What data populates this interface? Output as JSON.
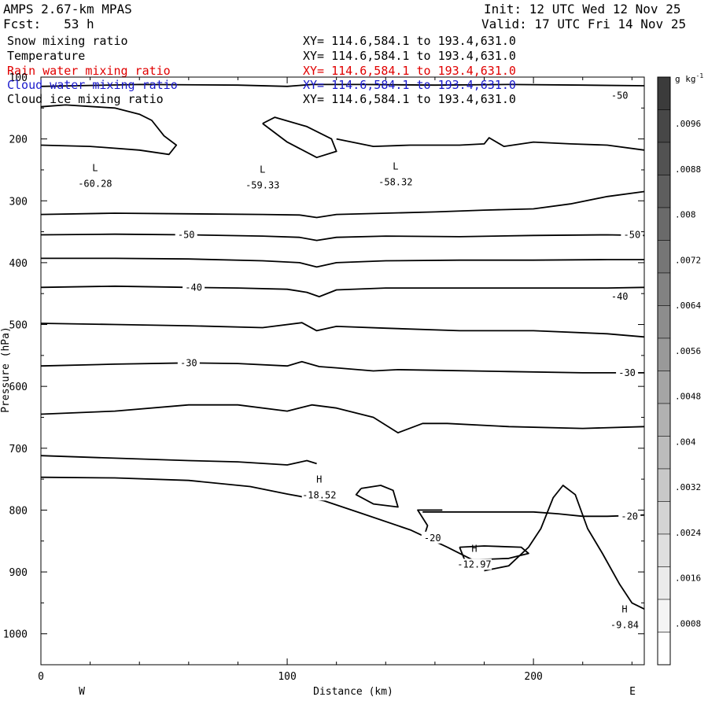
{
  "header": {
    "model": "AMPS 2.67-km MPAS",
    "init": "Init: 12 UTC Wed 12 Nov 25",
    "fcst": "Fcst:   53 h",
    "valid": "Valid: 17 UTC Fri 14 Nov 25"
  },
  "variables": [
    {
      "name": "Snow mixing ratio",
      "xy": "XY= 114.6,584.1 to 193.4,631.0",
      "color": "#000000"
    },
    {
      "name": "Temperature",
      "xy": "XY= 114.6,584.1 to 193.4,631.0",
      "color": "#000000"
    },
    {
      "name": "Rain water mixing ratio",
      "xy": "XY= 114.6,584.1 to 193.4,631.0",
      "color": "#e00000"
    },
    {
      "name": "Cloud water mixing ratio",
      "xy": "XY= 114.6,584.1 to 193.4,631.0",
      "color": "#1a1acc"
    },
    {
      "name": "Cloud ice mixing ratio",
      "xy": "XY= 114.6,584.1 to 193.4,631.0",
      "color": "#000000"
    }
  ],
  "chart_data": {
    "type": "contour",
    "xlabel": "Distance (km)",
    "ylabel": "Pressure (hPa)",
    "xlim": [
      0,
      245
    ],
    "ylim": [
      100,
      1050
    ],
    "y_inverted": true,
    "x_ticks": [
      0,
      100,
      200
    ],
    "y_ticks": [
      100,
      200,
      300,
      400,
      500,
      600,
      700,
      800,
      900,
      1000
    ],
    "left_end_label": "W",
    "right_end_label": "E",
    "colorbar": {
      "unit": "g kg",
      "unit_sup": "-1",
      "labels": [
        ".0096",
        ".0088",
        ".008",
        ".0072",
        ".0064",
        ".0056",
        ".0048",
        ".004",
        ".0032",
        ".0024",
        ".0016",
        ".0008"
      ],
      "colors_top_to_bottom": [
        "#3b3b3b",
        "#474747",
        "#525252",
        "#5e5e5e",
        "#6a6a6a",
        "#767676",
        "#828282",
        "#8d8d8d",
        "#999999",
        "#a5a5a5",
        "#b1b1b1",
        "#bcbcbc",
        "#c8c8c8",
        "#d4d4d4",
        "#dfdfdf",
        "#ebebeb",
        "#f4f4f4",
        "#ffffff"
      ]
    },
    "temperature_contours": [
      {
        "label": "-50",
        "points": [
          [
            0,
            355
          ],
          [
            30,
            354
          ],
          [
            60,
            355
          ],
          [
            90,
            357
          ],
          [
            105,
            359
          ],
          [
            112,
            364
          ],
          [
            120,
            359
          ],
          [
            140,
            357
          ],
          [
            170,
            358
          ],
          [
            200,
            356
          ],
          [
            230,
            355
          ],
          [
            245,
            356
          ]
        ]
      },
      {
        "label": "-40",
        "points": [
          [
            0,
            440
          ],
          [
            30,
            438
          ],
          [
            60,
            440
          ],
          [
            80,
            441
          ],
          [
            100,
            443
          ],
          [
            108,
            448
          ],
          [
            113,
            455
          ],
          [
            120,
            444
          ],
          [
            140,
            441
          ],
          [
            170,
            441
          ],
          [
            200,
            441
          ],
          [
            230,
            441
          ],
          [
            245,
            440
          ]
        ]
      },
      {
        "label": "-30",
        "points": [
          [
            0,
            567
          ],
          [
            30,
            564
          ],
          [
            60,
            562
          ],
          [
            80,
            563
          ],
          [
            100,
            567
          ],
          [
            106,
            560
          ],
          [
            113,
            568
          ],
          [
            120,
            570
          ],
          [
            135,
            575
          ],
          [
            145,
            573
          ],
          [
            160,
            574
          ],
          [
            190,
            576
          ],
          [
            220,
            578
          ],
          [
            245,
            578
          ]
        ]
      },
      {
        "label": "-20",
        "points": [
          [
            155,
            803
          ],
          [
            180,
            803
          ],
          [
            200,
            803
          ],
          [
            210,
            806
          ],
          [
            220,
            810
          ],
          [
            230,
            810
          ],
          [
            245,
            808
          ]
        ]
      },
      {
        "label": "",
        "points": [
          [
            0,
            322
          ],
          [
            30,
            320
          ],
          [
            60,
            321
          ],
          [
            90,
            322
          ],
          [
            105,
            323
          ],
          [
            112,
            327
          ],
          [
            120,
            322
          ],
          [
            140,
            320
          ],
          [
            160,
            318
          ],
          [
            180,
            315
          ],
          [
            200,
            313
          ],
          [
            215,
            305
          ],
          [
            230,
            293
          ],
          [
            245,
            285
          ]
        ]
      },
      {
        "label": "",
        "points": [
          [
            0,
            393
          ],
          [
            30,
            393
          ],
          [
            60,
            394
          ],
          [
            90,
            397
          ],
          [
            105,
            400
          ],
          [
            112,
            407
          ],
          [
            120,
            400
          ],
          [
            140,
            397
          ],
          [
            170,
            396
          ],
          [
            200,
            396
          ],
          [
            230,
            395
          ],
          [
            245,
            395
          ]
        ]
      },
      {
        "label": "",
        "points": [
          [
            0,
            498
          ],
          [
            30,
            500
          ],
          [
            60,
            502
          ],
          [
            90,
            505
          ],
          [
            106,
            497
          ],
          [
            112,
            510
          ],
          [
            120,
            503
          ],
          [
            140,
            506
          ],
          [
            170,
            510
          ],
          [
            200,
            510
          ],
          [
            230,
            515
          ],
          [
            245,
            520
          ]
        ]
      },
      {
        "label": "",
        "points": [
          [
            0,
            645
          ],
          [
            30,
            640
          ],
          [
            60,
            630
          ],
          [
            80,
            630
          ],
          [
            100,
            640
          ],
          [
            110,
            630
          ],
          [
            120,
            635
          ],
          [
            135,
            650
          ],
          [
            145,
            675
          ],
          [
            155,
            660
          ],
          [
            165,
            660
          ],
          [
            190,
            665
          ],
          [
            220,
            668
          ],
          [
            245,
            665
          ]
        ]
      },
      {
        "label": "",
        "points": [
          [
            0,
            712
          ],
          [
            30,
            716
          ],
          [
            60,
            720
          ],
          [
            80,
            722
          ],
          [
            100,
            727
          ],
          [
            108,
            720
          ],
          [
            112,
            725
          ]
        ]
      },
      {
        "label": "",
        "points": [
          [
            0,
            747
          ],
          [
            30,
            748
          ],
          [
            60,
            752
          ],
          [
            85,
            762
          ],
          [
            100,
            774
          ],
          [
            115,
            785
          ],
          [
            130,
            805
          ],
          [
            150,
            832
          ],
          [
            165,
            860
          ],
          [
            175,
            880
          ],
          [
            180,
            895
          ]
        ]
      },
      {
        "label": "",
        "points": [
          [
            155,
            850
          ],
          [
            157,
            825
          ],
          [
            153,
            800
          ],
          [
            163,
            800
          ]
        ]
      },
      {
        "label": "",
        "points": [
          [
            170,
            860
          ],
          [
            172,
            880
          ],
          [
            178,
            880
          ],
          [
            190,
            878
          ],
          [
            198,
            870
          ],
          [
            195,
            860
          ],
          [
            180,
            858
          ],
          [
            170,
            860
          ]
        ]
      },
      {
        "label": "",
        "points": [
          [
            130,
            765
          ],
          [
            138,
            760
          ],
          [
            143,
            768
          ],
          [
            145,
            795
          ],
          [
            135,
            790
          ],
          [
            128,
            775
          ],
          [
            130,
            765
          ]
        ]
      },
      {
        "label": "",
        "points": [
          [
            180,
            898
          ],
          [
            190,
            890
          ],
          [
            198,
            860
          ],
          [
            203,
            830
          ],
          [
            208,
            780
          ],
          [
            212,
            760
          ],
          [
            217,
            775
          ],
          [
            222,
            830
          ],
          [
            228,
            870
          ],
          [
            235,
            920
          ],
          [
            240,
            950
          ],
          [
            245,
            960
          ]
        ]
      },
      {
        "label": "",
        "points": [
          [
            0,
            210
          ],
          [
            20,
            212
          ],
          [
            40,
            218
          ],
          [
            52,
            225
          ],
          [
            55,
            210
          ],
          [
            50,
            195
          ],
          [
            45,
            170
          ],
          [
            40,
            160
          ],
          [
            30,
            150
          ],
          [
            10,
            145
          ],
          [
            0,
            148
          ]
        ]
      },
      {
        "label": "",
        "points": [
          [
            90,
            175
          ],
          [
            100,
            205
          ],
          [
            112,
            230
          ],
          [
            120,
            220
          ],
          [
            118,
            200
          ],
          [
            108,
            180
          ],
          [
            95,
            165
          ],
          [
            90,
            175
          ]
        ]
      },
      {
        "label": "",
        "points": [
          [
            120,
            200
          ],
          [
            135,
            212
          ],
          [
            150,
            210
          ],
          [
            170,
            210
          ],
          [
            180,
            208
          ],
          [
            182,
            198
          ],
          [
            188,
            212
          ],
          [
            200,
            205
          ],
          [
            215,
            208
          ],
          [
            230,
            210
          ],
          [
            245,
            218
          ]
        ]
      },
      {
        "label": "",
        "points": [
          [
            0,
            115
          ],
          [
            40,
            112
          ],
          [
            80,
            113
          ],
          [
            100,
            115
          ],
          [
            110,
            112
          ],
          [
            130,
            112
          ],
          [
            160,
            113
          ],
          [
            190,
            112
          ],
          [
            220,
            113
          ],
          [
            245,
            114
          ]
        ]
      }
    ],
    "extrema": [
      {
        "type": "L",
        "value": "-60.28",
        "x": 22,
        "p": 265
      },
      {
        "type": "L",
        "value": "-59.33",
        "x": 90,
        "p": 267
      },
      {
        "type": "L",
        "value": "-58.32",
        "x": 144,
        "p": 262
      },
      {
        "type": "H",
        "value": "-18.52",
        "x": 113,
        "p": 768
      },
      {
        "type": "H",
        "value": "-12.97",
        "x": 176,
        "p": 880
      },
      {
        "type": "H",
        "value": "-9.84",
        "x": 237,
        "p": 978
      }
    ],
    "extra_labels": [
      {
        "text": "-50",
        "x": 235,
        "p": 130
      },
      {
        "text": "-50",
        "x": 59,
        "p": 355
      },
      {
        "text": "-50",
        "x": 240,
        "p": 355
      },
      {
        "text": "-40",
        "x": 62,
        "p": 440
      },
      {
        "text": "-40",
        "x": 235,
        "p": 455
      },
      {
        "text": "-30",
        "x": 60,
        "p": 562
      },
      {
        "text": "-30",
        "x": 238,
        "p": 578
      },
      {
        "text": "-20",
        "x": 239,
        "p": 810
      },
      {
        "text": "-20",
        "x": 159,
        "p": 845
      }
    ]
  }
}
